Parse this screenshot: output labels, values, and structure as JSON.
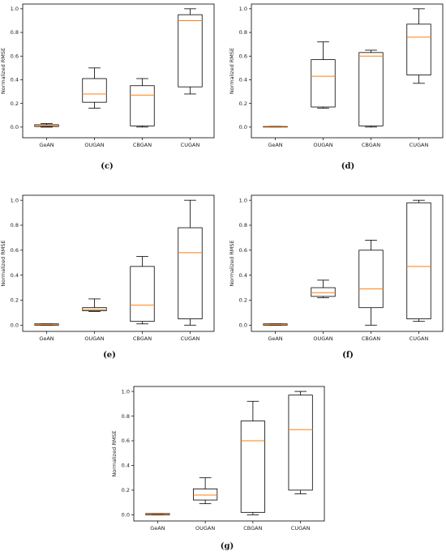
{
  "chart_data": [
    {
      "type": "box",
      "panel": "c",
      "caption": "(c)",
      "ylabel": "Normalized RMSE",
      "ylim": [
        -0.09,
        1.04
      ],
      "yticks": [
        0.0,
        0.2,
        0.4,
        0.6,
        0.8,
        1.0
      ],
      "categories": [
        "GeAN",
        "OUGAN",
        "CBGAN",
        "CUGAN"
      ],
      "boxes": [
        {
          "whislo": 0.0,
          "q1": 0.005,
          "med": 0.01,
          "q3": 0.02,
          "whishi": 0.03
        },
        {
          "whislo": 0.16,
          "q1": 0.21,
          "med": 0.28,
          "q3": 0.41,
          "whishi": 0.5
        },
        {
          "whislo": 0.0,
          "q1": 0.01,
          "med": 0.27,
          "q3": 0.35,
          "whishi": 0.41
        },
        {
          "whislo": 0.28,
          "q1": 0.34,
          "med": 0.9,
          "q3": 0.95,
          "whishi": 1.0
        }
      ]
    },
    {
      "type": "box",
      "panel": "d",
      "caption": "(d)",
      "ylabel": "Normalized RMSE",
      "ylim": [
        -0.09,
        1.04
      ],
      "yticks": [
        0.0,
        0.2,
        0.4,
        0.6,
        0.8,
        1.0
      ],
      "categories": [
        "GeAN",
        "OUGAN",
        "CBGAN",
        "CUGAN"
      ],
      "boxes": [
        {
          "whislo": 0.0,
          "q1": 0.0,
          "med": 0.0,
          "q3": 0.005,
          "whishi": 0.005
        },
        {
          "whislo": 0.16,
          "q1": 0.17,
          "med": 0.43,
          "q3": 0.57,
          "whishi": 0.72
        },
        {
          "whislo": 0.0,
          "q1": 0.01,
          "med": 0.6,
          "q3": 0.63,
          "whishi": 0.65
        },
        {
          "whislo": 0.37,
          "q1": 0.44,
          "med": 0.76,
          "q3": 0.87,
          "whishi": 1.0
        }
      ]
    },
    {
      "type": "box",
      "panel": "e",
      "caption": "(e)",
      "ylabel": "Normalized RMSE",
      "ylim": [
        -0.05,
        1.04
      ],
      "yticks": [
        0.0,
        0.2,
        0.4,
        0.6,
        0.8,
        1.0
      ],
      "categories": [
        "GeAN",
        "OUGAN",
        "CBGAN",
        "CUGAN"
      ],
      "boxes": [
        {
          "whislo": 0.0,
          "q1": 0.0,
          "med": 0.005,
          "q3": 0.01,
          "whishi": 0.01
        },
        {
          "whislo": 0.11,
          "q1": 0.115,
          "med": 0.125,
          "q3": 0.14,
          "whishi": 0.21
        },
        {
          "whislo": 0.01,
          "q1": 0.03,
          "med": 0.16,
          "q3": 0.47,
          "whishi": 0.55
        },
        {
          "whislo": 0.0,
          "q1": 0.05,
          "med": 0.58,
          "q3": 0.78,
          "whishi": 1.0
        }
      ]
    },
    {
      "type": "box",
      "panel": "f",
      "caption": "(f)",
      "ylabel": "Normalized RMSE",
      "ylim": [
        -0.05,
        1.04
      ],
      "yticks": [
        0.0,
        0.2,
        0.4,
        0.6,
        0.8,
        1.0
      ],
      "categories": [
        "GeAN",
        "OUGAN",
        "CBGAN",
        "CUGAN"
      ],
      "boxes": [
        {
          "whislo": 0.0,
          "q1": 0.0,
          "med": 0.005,
          "q3": 0.01,
          "whishi": 0.01
        },
        {
          "whislo": 0.22,
          "q1": 0.23,
          "med": 0.26,
          "q3": 0.3,
          "whishi": 0.36
        },
        {
          "whislo": 0.0,
          "q1": 0.14,
          "med": 0.29,
          "q3": 0.6,
          "whishi": 0.68
        },
        {
          "whislo": 0.03,
          "q1": 0.05,
          "med": 0.47,
          "q3": 0.98,
          "whishi": 1.0
        }
      ]
    },
    {
      "type": "box",
      "panel": "g",
      "caption": "(g)",
      "ylabel": "Normalized RMSE",
      "ylim": [
        -0.05,
        1.04
      ],
      "yticks": [
        0.0,
        0.2,
        0.4,
        0.6,
        0.8,
        1.0
      ],
      "categories": [
        "GeAN",
        "OUGAN",
        "CBGAN",
        "CUGAN"
      ],
      "boxes": [
        {
          "whislo": 0.0,
          "q1": 0.0,
          "med": 0.005,
          "q3": 0.01,
          "whishi": 0.01
        },
        {
          "whislo": 0.09,
          "q1": 0.12,
          "med": 0.16,
          "q3": 0.21,
          "whishi": 0.3
        },
        {
          "whislo": 0.0,
          "q1": 0.02,
          "med": 0.6,
          "q3": 0.76,
          "whishi": 0.92
        },
        {
          "whislo": 0.17,
          "q1": 0.2,
          "med": 0.69,
          "q3": 0.97,
          "whishi": 1.0
        }
      ]
    }
  ],
  "colors": {
    "box": "#000000",
    "median": "#ff7f0e",
    "caption": "#111111"
  }
}
